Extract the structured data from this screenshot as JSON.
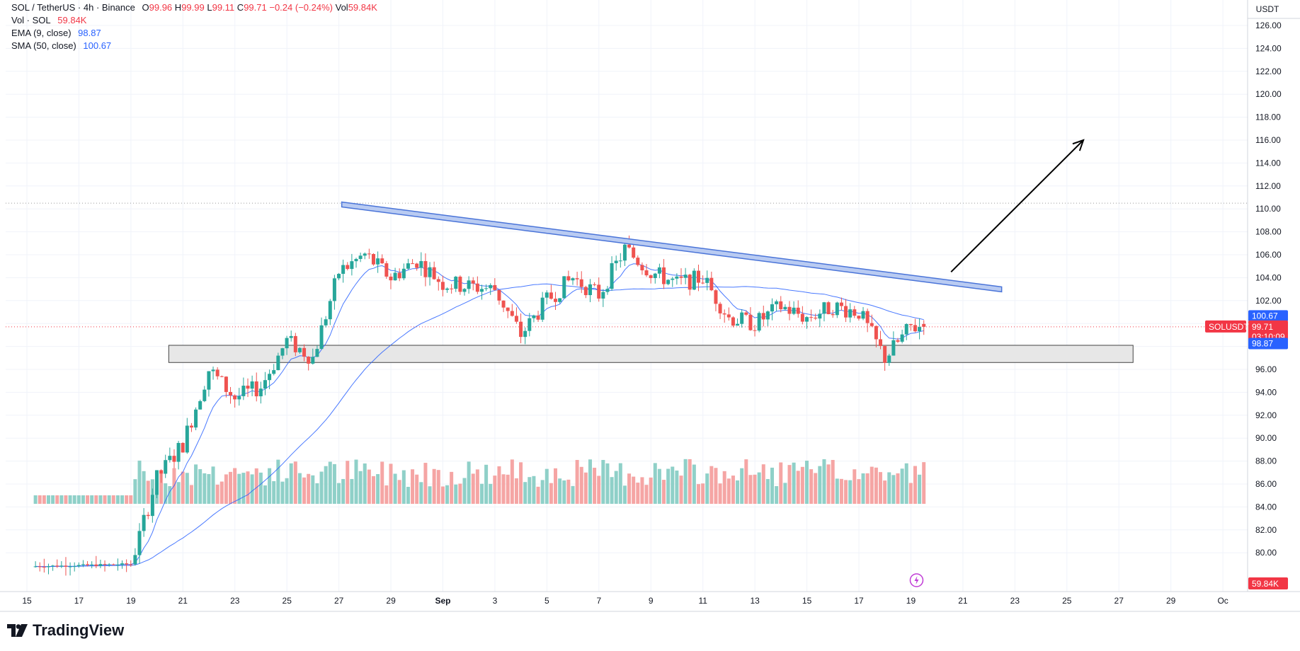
{
  "header": {
    "symbol": "SOL / TetherUS · 4h · Binance",
    "o_label": "O",
    "o_value": "99.96",
    "h_label": "H",
    "h_value": "99.99",
    "l_label": "L",
    "l_value": "99.11",
    "c_label": "C",
    "c_value": "99.71",
    "change": "−0.24 (−0.24%)",
    "vol_label": "Vol",
    "vol_value": "59.84K",
    "vol_row_label": "Vol · SOL",
    "vol_row_value": "59.84K",
    "ema_label": "EMA (9, close)",
    "ema_value": "98.87",
    "sma_label": "SMA (50, close)",
    "sma_value": "100.67"
  },
  "brand": {
    "name": "TradingView",
    "icon": "tradingview-logo-icon"
  },
  "colors": {
    "up": "#26a69a",
    "down": "#ef5350",
    "vol_up": "#8fd0c8",
    "vol_down": "#f5a5a4",
    "ema": "#2962ff",
    "sma": "#2962ff",
    "trendline": "#4a74d8",
    "zone": "#e7e7e7",
    "price_tag": "#f23645",
    "ema_tag": "#2962ff",
    "sma_tag": "#2962ff"
  },
  "chart_data": {
    "type": "candlestick",
    "timeframe": "4h",
    "y_axis_unit": "USDT",
    "y_ticks": [
      "126.00",
      "124.00",
      "122.00",
      "120.00",
      "118.00",
      "116.00",
      "114.00",
      "112.00",
      "110.00",
      "108.00",
      "106.00",
      "104.00",
      "102.00",
      "100.00",
      "98.00",
      "96.00",
      "94.00",
      "92.00",
      "90.00",
      "88.00",
      "86.00",
      "84.00",
      "82.00",
      "80.00"
    ],
    "y_range": [
      77.5,
      127
    ],
    "x_ticks": [
      "15",
      "17",
      "19",
      "21",
      "23",
      "25",
      "27",
      "29",
      "Sep",
      "3",
      "5",
      "7",
      "9",
      "11",
      "13",
      "15",
      "17",
      "19",
      "21",
      "23",
      "25",
      "27",
      "29",
      "Oc"
    ],
    "last_price": {
      "label": "SOLUSDT",
      "value": "99.71",
      "countdown": "03:10:09"
    },
    "sma_tag": "100.67",
    "ema_tag": "98.87",
    "volume_tag": "59.84K",
    "dotted_high_level": 110.5,
    "support_zone": {
      "low": 96.6,
      "high": 98.1,
      "from": "Aug 21",
      "to": "Sep 25"
    },
    "trendline": {
      "from": {
        "date": "Aug 27",
        "price": 110.6
      },
      "to": {
        "date": "Sep 20",
        "price": 103.2
      }
    },
    "projection_arrow": {
      "from": {
        "date": "Sep 18",
        "price": 104.5
      },
      "to": {
        "date": "Sep 22",
        "price": 116.0
      }
    },
    "keypoints_close": [
      [
        "Aug 19",
        79.0
      ],
      [
        "Aug 20",
        86.5
      ],
      [
        "Aug 21",
        89.5
      ],
      [
        "Aug 22",
        96.0
      ],
      [
        "Aug 23",
        93.5
      ],
      [
        "Aug 24",
        94.5
      ],
      [
        "Aug 25",
        98.5
      ],
      [
        "Aug 26",
        97.0
      ],
      [
        "Aug 27",
        104.5
      ],
      [
        "Aug 28",
        106.0
      ],
      [
        "Aug 29",
        104.0
      ],
      [
        "Aug 30",
        105.5
      ],
      [
        "Aug 31",
        103.5
      ],
      [
        "Sep 1",
        103.0
      ],
      [
        "Sep 2",
        99.0
      ],
      [
        "Sep 3",
        102.0
      ],
      [
        "Sep 4",
        104.0
      ],
      [
        "Sep 5",
        102.5
      ],
      [
        "Sep 6",
        106.5
      ],
      [
        "Sep 7",
        104.5
      ],
      [
        "Sep 8",
        103.5
      ],
      [
        "Sep 9",
        104.0
      ],
      [
        "Sep 10",
        100.5
      ],
      [
        "Sep 11",
        100.0
      ],
      [
        "Sep 12",
        101.5
      ],
      [
        "Sep 13",
        100.5
      ],
      [
        "Sep 14",
        101.5
      ],
      [
        "Sep 15",
        101.0
      ],
      [
        "Sep 16",
        97.0
      ],
      [
        "Sep 17",
        99.71
      ]
    ]
  }
}
